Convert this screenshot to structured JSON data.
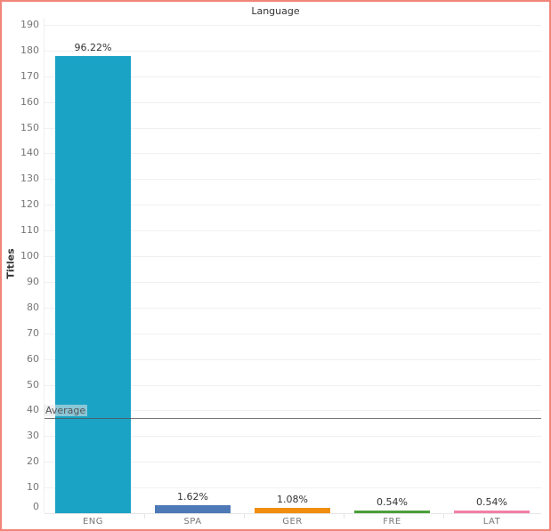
{
  "chart_data": {
    "type": "bar",
    "title": "Language",
    "xlabel": "",
    "ylabel": "Titles",
    "ylim": [
      0,
      190
    ],
    "yticks": [
      0,
      10,
      20,
      30,
      40,
      50,
      60,
      70,
      80,
      90,
      100,
      110,
      120,
      130,
      140,
      150,
      160,
      170,
      180,
      190
    ],
    "categories": [
      "ENG",
      "SPA",
      "GER",
      "FRE",
      "LAT"
    ],
    "values": [
      178,
      3,
      2,
      1,
      1
    ],
    "percent_labels": [
      "96.22%",
      "1.62%",
      "1.08%",
      "0.54%",
      "0.54%"
    ],
    "colors": [
      "#1ba3c6",
      "#4e79b7",
      "#f28e0f",
      "#4a9f3a",
      "#f37ea6"
    ],
    "reference_line": {
      "label": "Average",
      "value": 37
    },
    "grid": true,
    "legend": null
  },
  "frame": {
    "border_color": "#f2857a"
  }
}
